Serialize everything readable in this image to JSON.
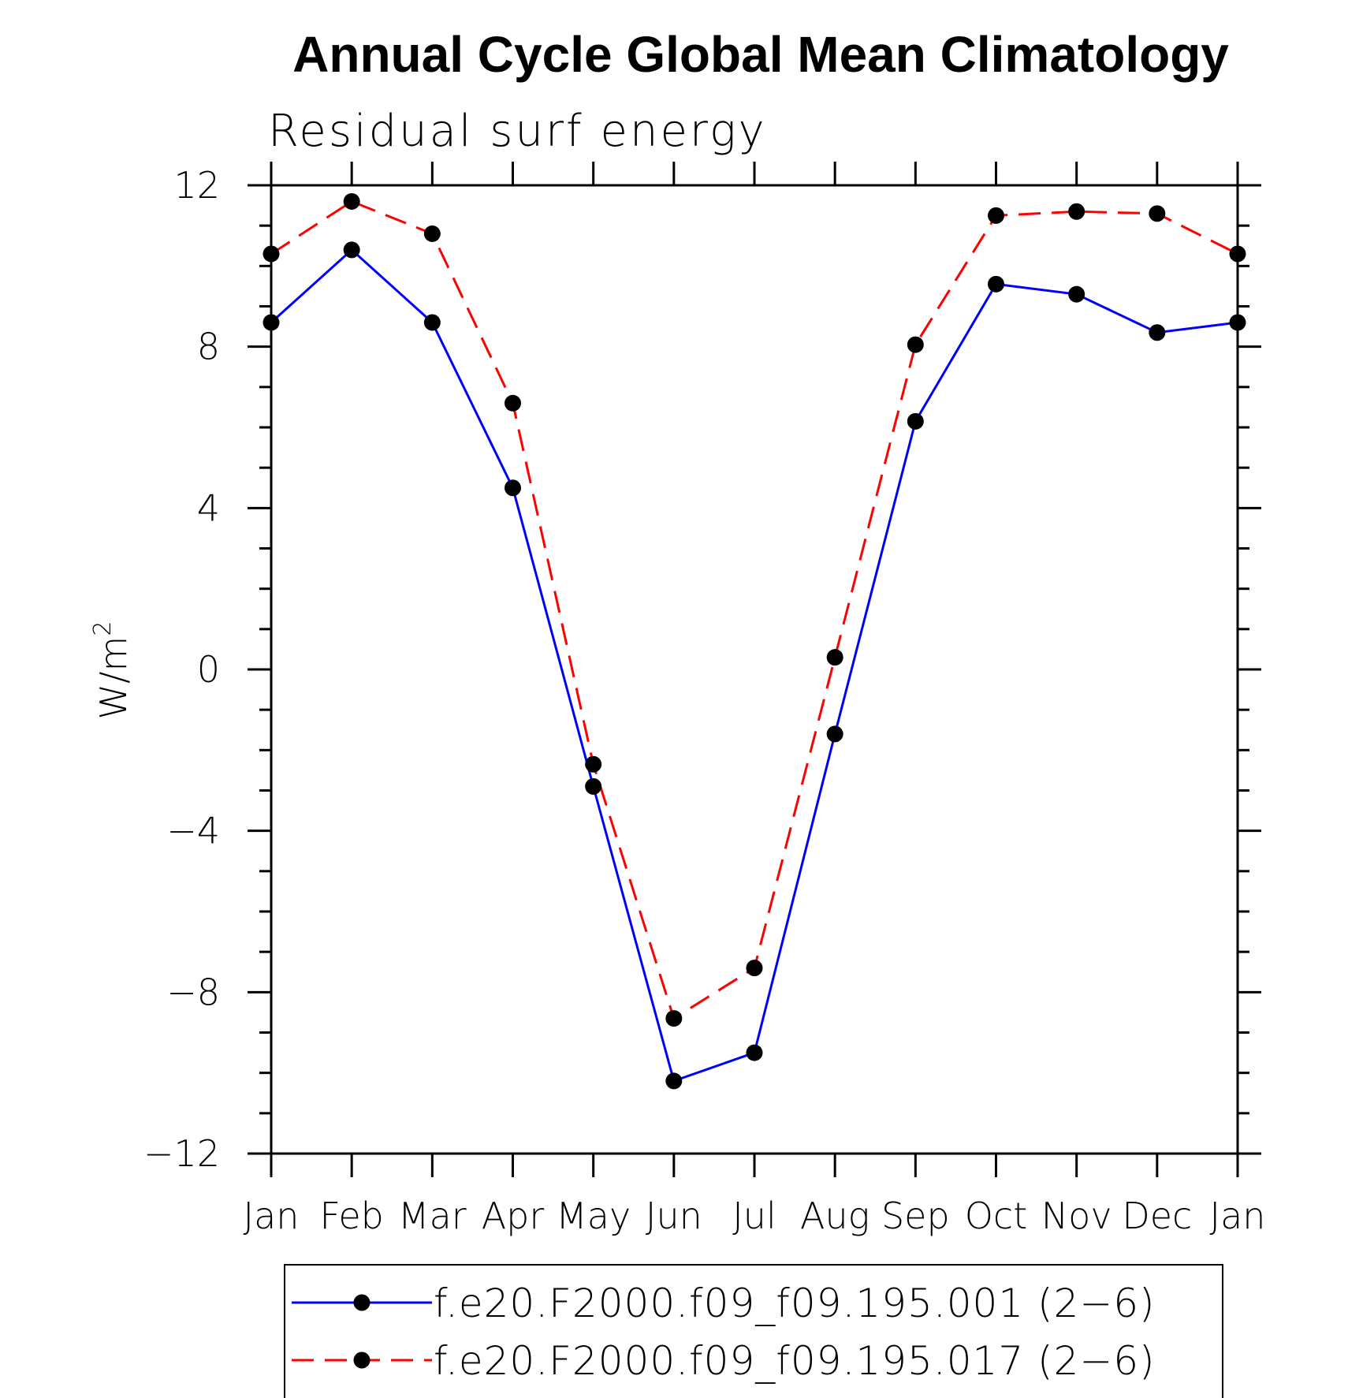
{
  "chart_data": {
    "type": "line",
    "title": "Annual Cycle Global Mean Climatology",
    "subtitle": "Residual surf energy",
    "ylabel": "W/m",
    "ylabel_superscript": "2",
    "ylim": [
      -12,
      12
    ],
    "yticks": [
      -12,
      -8,
      -4,
      0,
      4,
      8,
      12
    ],
    "ytick_labels": [
      "−12",
      "−8",
      "−4",
      "0",
      "4",
      "8",
      "12"
    ],
    "categories": [
      "Jan",
      "Feb",
      "Mar",
      "Apr",
      "May",
      "Jun",
      "Jul",
      "Aug",
      "Sep",
      "Oct",
      "Nov",
      "Dec",
      "Jan"
    ],
    "series": [
      {
        "name": "f.e20.F2000.f09_f09.195.001 (2−6)",
        "color": "#0000ff",
        "dash": "solid",
        "values": [
          8.6,
          10.4,
          8.6,
          4.5,
          -2.9,
          -10.2,
          -9.5,
          -1.6,
          6.15,
          9.55,
          9.3,
          8.35,
          8.6
        ]
      },
      {
        "name": "f.e20.F2000.f09_f09.195.017 (2−6)",
        "color": "#ff0000",
        "dash": "dashed",
        "values": [
          10.3,
          11.6,
          10.8,
          6.6,
          -2.35,
          -8.65,
          -7.4,
          0.3,
          8.05,
          11.25,
          11.35,
          11.3,
          10.3
        ]
      }
    ],
    "marker": "filled-circle",
    "marker_color": "#000000",
    "grid": false,
    "legend_position": "bottom"
  }
}
